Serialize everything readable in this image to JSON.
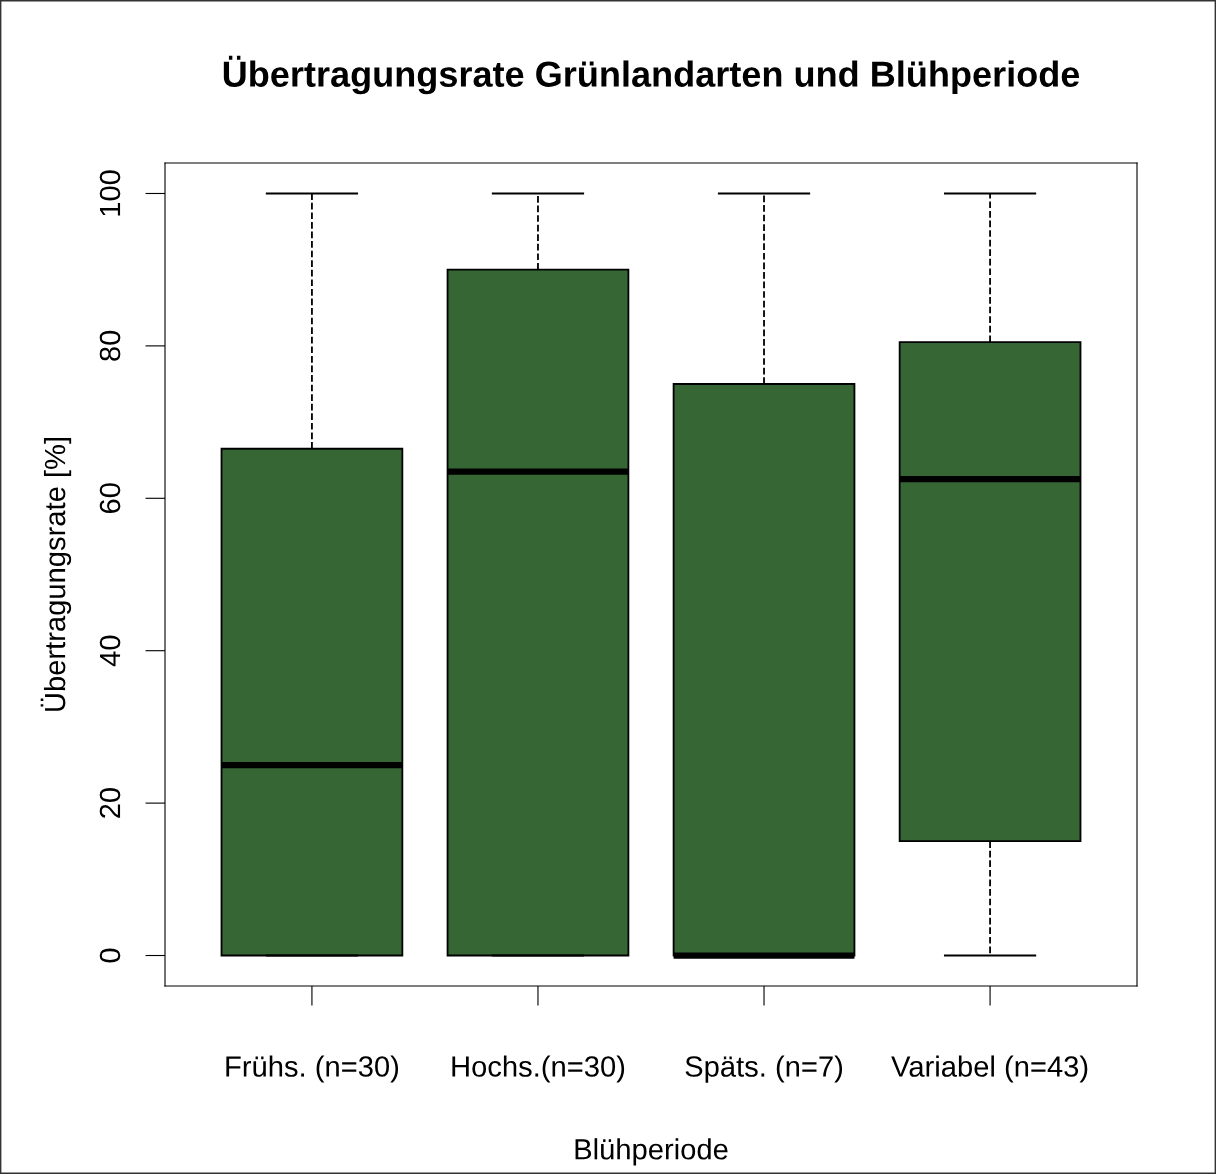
{
  "chart_data": {
    "type": "box",
    "title": "Übertragungsrate Grünlandarten und Blühperiode",
    "xlabel": "Blühperiode",
    "ylabel": "Übertragungsrate [%]",
    "categories": [
      "Frühs. (n=30)",
      "Hochs.(n=30)",
      "Späts. (n=7)",
      "Variabel (n=43)"
    ],
    "color": "#366634",
    "boxes": [
      {
        "low": 0,
        "q1": 0,
        "median": 25,
        "q3": 66.5,
        "high": 100
      },
      {
        "low": 0,
        "q1": 0,
        "median": 63.5,
        "q3": 90,
        "high": 100
      },
      {
        "low": 0,
        "q1": 0,
        "median": 0,
        "q3": 75,
        "high": 100
      },
      {
        "low": 0,
        "q1": 15,
        "median": 62.5,
        "q3": 80.5,
        "high": 100
      }
    ],
    "ylim": [
      -4,
      104
    ],
    "yticks": [
      0,
      20,
      40,
      60,
      80,
      100
    ],
    "grid": false,
    "legend": false
  }
}
